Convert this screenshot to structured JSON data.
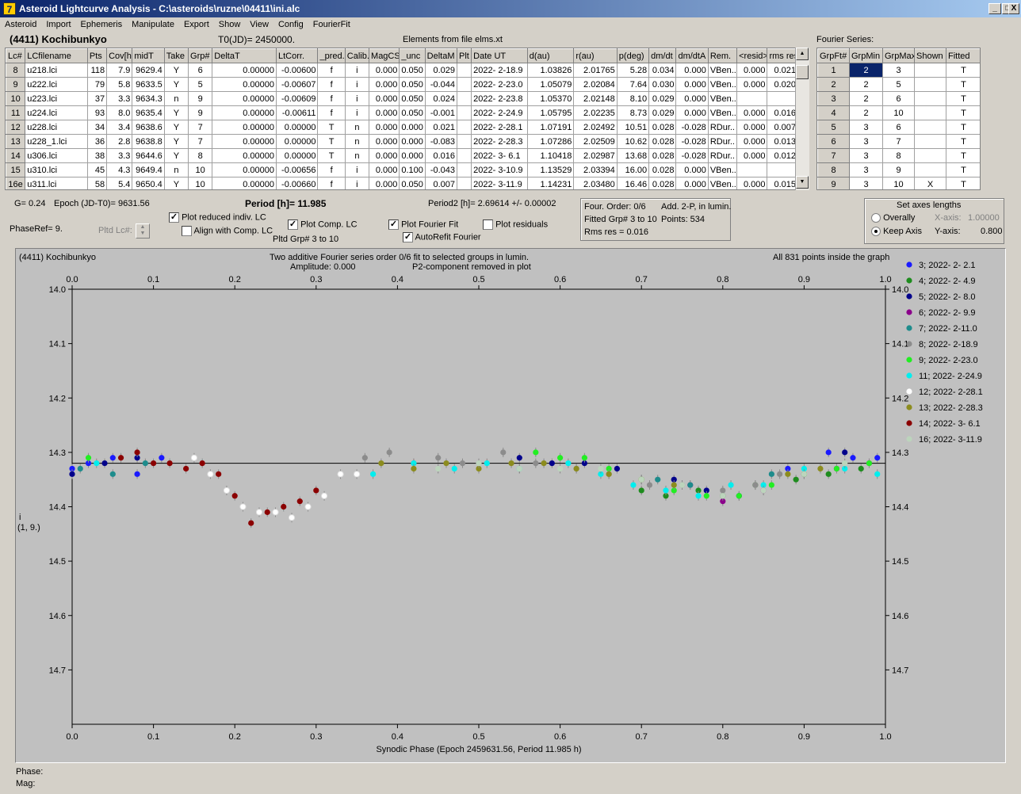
{
  "window": {
    "title": "Asteroid Lightcurve Analysis - C:\\asteroids\\ruzne\\04411\\ini.alc",
    "app_icon": "7",
    "controls": [
      "_",
      "□",
      "X"
    ]
  },
  "menu": [
    "Asteroid",
    "Import",
    "Ephemeris",
    "Manipulate",
    "Export",
    "Show",
    "View",
    "Config",
    "FourierFit"
  ],
  "header": {
    "asteroid": "(4411) Kochibunkyo",
    "t0": "T0(JD)= 2450000.",
    "elements": "Elements from file elms.xt",
    "fourier_label": "Fourier Series:"
  },
  "lc_table": {
    "columns": [
      "Lc#",
      "LCfilename",
      "Pts",
      "Cov[h]",
      "midT",
      "Take",
      "Grp#",
      "DeltaT",
      "LtCorr.",
      "_pred.",
      "Calib.",
      "MagCS",
      "_unc",
      "DeltaM",
      "Plt",
      "Date UT",
      "d(au)",
      "r(au)",
      "p(deg)",
      "dm/dt",
      "dm/dtA",
      "Rem.",
      "<resid>",
      "rms res"
    ],
    "rows": [
      [
        "8",
        "u218.lci",
        "118",
        "7.9",
        "9629.4",
        "Y",
        "6",
        "0.00000",
        "-0.00600",
        "f",
        "i",
        "0.000",
        "0.050",
        "0.029",
        "",
        "2022- 2-18.9",
        "1.03826",
        "2.01765",
        "5.28",
        "0.034",
        "0.000",
        "VBen..",
        "0.000",
        "0.021"
      ],
      [
        "9",
        "u222.lci",
        "79",
        "5.8",
        "9633.5",
        "Y",
        "5",
        "0.00000",
        "-0.00607",
        "f",
        "i",
        "0.000",
        "0.050",
        "-0.044",
        "",
        "2022- 2-23.0",
        "1.05079",
        "2.02084",
        "7.64",
        "0.030",
        "0.000",
        "VBen..",
        "0.000",
        "0.020"
      ],
      [
        "10",
        "u223.lci",
        "37",
        "3.3",
        "9634.3",
        "n",
        "9",
        "0.00000",
        "-0.00609",
        "f",
        "i",
        "0.000",
        "0.050",
        "0.024",
        "",
        "2022- 2-23.8",
        "1.05370",
        "2.02148",
        "8.10",
        "0.029",
        "0.000",
        "VBen..",
        "",
        ""
      ],
      [
        "11",
        "u224.lci",
        "93",
        "8.0",
        "9635.4",
        "Y",
        "9",
        "0.00000",
        "-0.00611",
        "f",
        "i",
        "0.000",
        "0.050",
        "-0.001",
        "",
        "2022- 2-24.9",
        "1.05795",
        "2.02235",
        "8.73",
        "0.029",
        "0.000",
        "VBen..",
        "0.000",
        "0.016"
      ],
      [
        "12",
        "u228.lci",
        "34",
        "3.4",
        "9638.6",
        "Y",
        "7",
        "0.00000",
        "0.00000",
        "T",
        "n",
        "0.000",
        "0.000",
        "0.021",
        "",
        "2022- 2-28.1",
        "1.07191",
        "2.02492",
        "10.51",
        "0.028",
        "-0.028",
        "RDur..",
        "0.000",
        "0.007"
      ],
      [
        "13",
        "u228_1.lci",
        "36",
        "2.8",
        "9638.8",
        "Y",
        "7",
        "0.00000",
        "0.00000",
        "T",
        "n",
        "0.000",
        "0.000",
        "-0.083",
        "",
        "2022- 2-28.3",
        "1.07286",
        "2.02509",
        "10.62",
        "0.028",
        "-0.028",
        "RDur..",
        "0.000",
        "0.013"
      ],
      [
        "14",
        "u306.lci",
        "38",
        "3.3",
        "9644.6",
        "Y",
        "8",
        "0.00000",
        "0.00000",
        "T",
        "n",
        "0.000",
        "0.000",
        "0.016",
        "",
        "2022- 3- 6.1",
        "1.10418",
        "2.02987",
        "13.68",
        "0.028",
        "-0.028",
        "RDur..",
        "0.000",
        "0.012"
      ],
      [
        "15",
        "u310.lci",
        "45",
        "4.3",
        "9649.4",
        "n",
        "10",
        "0.00000",
        "-0.00656",
        "f",
        "i",
        "0.000",
        "0.100",
        "-0.043",
        "",
        "2022- 3-10.9",
        "1.13529",
        "2.03394",
        "16.00",
        "0.028",
        "0.000",
        "VBen..",
        "",
        ""
      ],
      [
        "16e",
        "u311.lci",
        "58",
        "5.4",
        "9650.4",
        "Y",
        "10",
        "0.00000",
        "-0.00660",
        "f",
        "i",
        "0.000",
        "0.050",
        "0.007",
        "",
        "2022- 3-11.9",
        "1.14231",
        "2.03480",
        "16.46",
        "0.028",
        "0.000",
        "VBen..",
        "0.000",
        "0.015"
      ]
    ]
  },
  "fourier_table": {
    "columns": [
      "GrpFt#",
      "GrpMin",
      "GrpMax",
      "Shown",
      "Fitted"
    ],
    "rows": [
      [
        "1",
        "2",
        "3",
        "",
        "T"
      ],
      [
        "2",
        "2",
        "5",
        "",
        "T"
      ],
      [
        "3",
        "2",
        "6",
        "",
        "T"
      ],
      [
        "4",
        "2",
        "10",
        "",
        "T"
      ],
      [
        "5",
        "3",
        "6",
        "",
        "T"
      ],
      [
        "6",
        "3",
        "7",
        "",
        "T"
      ],
      [
        "7",
        "3",
        "8",
        "",
        "T"
      ],
      [
        "8",
        "3",
        "9",
        "",
        "T"
      ],
      [
        "9",
        "3",
        "10",
        "X",
        "T"
      ]
    ]
  },
  "controls": {
    "g": "G= 0.24",
    "epoch": "Epoch (JD-T0)= 9631.56",
    "period": "Period [h]= 11.985",
    "period2": "Period2 [h]= 2.69614 +/- 0.00002",
    "phaseref": "PhaseRef= 9.",
    "pltd_lc": "Pltd Lc#:",
    "cb_reduced": "Plot reduced indiv. LC",
    "cb_align": "Align with Comp. LC",
    "cb_comp": "Plot Comp. LC",
    "pltd_grp": "Pltd Grp#  3   to   10",
    "cb_fourier": "Plot Fourier Fit",
    "cb_autorefit": "AutoRefit Fourier",
    "cb_residuals": "Plot residuals",
    "checked": {
      "reduced": true,
      "align": false,
      "comp": true,
      "fourier": true,
      "autorefit": true,
      "residuals": false
    }
  },
  "fourier_info": {
    "order": "Four. Order:  0/6",
    "add": "Add. 2-P, in lumin.",
    "fitted": "Fitted Grp# 3 to 10",
    "points": "Points: 534",
    "rms": "Rms res     = 0.016"
  },
  "axes_box": {
    "title": "Set axes lengths",
    "overally": "Overally",
    "keepaxis": "Keep Axis",
    "xaxis_label": "X-axis:",
    "xaxis_val": "1.00000",
    "yaxis_label": "Y-axis:",
    "yaxis_val": "0.800",
    "selected": "keepaxis"
  },
  "plot_header": {
    "name": "(4411) Kochibunkyo",
    "desc1": "Two additive Fourier series order 0/6 fit to selected groups in lumin.",
    "desc2": "Amplitude: 0.000",
    "desc3": "P2-component removed in plot",
    "points": "All 831 points inside the graph",
    "ylabel1": "i",
    "ylabel2": "(1, 9.)"
  },
  "status": {
    "phase": "Phase:",
    "mag": "Mag:"
  },
  "chart_data": {
    "type": "scatter",
    "xlabel": "Synodic Phase (Epoch 2459631.56, Period 11.985 h)",
    "ylabel": "i (1, 9.)",
    "xlim": [
      0,
      1
    ],
    "ylim": [
      14.0,
      14.8
    ],
    "y_inverted": true,
    "xticks": [
      "0.0",
      "0.1",
      "0.2",
      "0.3",
      "0.4",
      "0.5",
      "0.6",
      "0.7",
      "0.8",
      "0.9",
      "1.0"
    ],
    "yticks": [
      "14.0",
      "14.1",
      "14.2",
      "14.3",
      "14.4",
      "14.5",
      "14.6",
      "14.7"
    ],
    "fit_line": 14.32,
    "legend_position": "right",
    "series": [
      {
        "name": "3; 2022- 2- 2.1",
        "color": "#1a1aff",
        "points": [
          [
            0.0,
            14.33
          ],
          [
            0.02,
            14.32
          ],
          [
            0.05,
            14.31
          ],
          [
            0.08,
            14.34
          ],
          [
            0.11,
            14.31
          ],
          [
            0.88,
            14.33
          ],
          [
            0.93,
            14.3
          ],
          [
            0.96,
            14.31
          ],
          [
            0.99,
            14.31
          ]
        ]
      },
      {
        "name": "4; 2022- 2- 4.9",
        "color": "#1e8c1e",
        "points": [
          [
            0.7,
            14.37
          ],
          [
            0.73,
            14.38
          ],
          [
            0.77,
            14.37
          ],
          [
            0.8,
            14.38
          ],
          [
            0.84,
            14.36
          ],
          [
            0.89,
            14.35
          ],
          [
            0.93,
            14.34
          ],
          [
            0.97,
            14.33
          ]
        ]
      },
      {
        "name": "5; 2022- 2- 8.0",
        "color": "#00008b",
        "points": [
          [
            0.55,
            14.31
          ],
          [
            0.59,
            14.32
          ],
          [
            0.63,
            14.32
          ],
          [
            0.67,
            14.33
          ],
          [
            0.74,
            14.35
          ],
          [
            0.78,
            14.37
          ],
          [
            0.82,
            14.38
          ],
          [
            0.95,
            14.3
          ],
          [
            0.0,
            14.34
          ],
          [
            0.04,
            14.32
          ],
          [
            0.08,
            14.31
          ]
        ]
      },
      {
        "name": "6; 2022- 2- 9.9",
        "color": "#8b008b",
        "points": [
          [
            0.76,
            14.36
          ],
          [
            0.8,
            14.39
          ],
          [
            0.85,
            14.37
          ],
          [
            0.9,
            14.34
          ],
          [
            0.94,
            14.33
          ],
          [
            0.98,
            14.32
          ]
        ]
      },
      {
        "name": "7; 2022- 2-11.0",
        "color": "#1e8c8c",
        "points": [
          [
            0.01,
            14.33
          ],
          [
            0.05,
            14.34
          ],
          [
            0.09,
            14.32
          ],
          [
            0.72,
            14.35
          ],
          [
            0.76,
            14.36
          ],
          [
            0.86,
            14.34
          ]
        ]
      },
      {
        "name": "8; 2022- 2-18.9",
        "color": "#8c8c8c",
        "points": [
          [
            0.36,
            14.31
          ],
          [
            0.39,
            14.3
          ],
          [
            0.42,
            14.32
          ],
          [
            0.45,
            14.31
          ],
          [
            0.48,
            14.32
          ],
          [
            0.53,
            14.3
          ],
          [
            0.57,
            14.32
          ],
          [
            0.62,
            14.33
          ],
          [
            0.66,
            14.34
          ],
          [
            0.71,
            14.36
          ],
          [
            0.75,
            14.36
          ],
          [
            0.8,
            14.37
          ],
          [
            0.84,
            14.36
          ],
          [
            0.87,
            14.34
          ]
        ]
      },
      {
        "name": "9; 2022- 2-23.0",
        "color": "#22ee22",
        "points": [
          [
            0.57,
            14.3
          ],
          [
            0.6,
            14.31
          ],
          [
            0.63,
            14.31
          ],
          [
            0.66,
            14.33
          ],
          [
            0.7,
            14.35
          ],
          [
            0.74,
            14.37
          ],
          [
            0.78,
            14.38
          ],
          [
            0.82,
            14.38
          ],
          [
            0.86,
            14.36
          ],
          [
            0.9,
            14.34
          ],
          [
            0.94,
            14.33
          ],
          [
            0.98,
            14.32
          ],
          [
            0.02,
            14.31
          ]
        ]
      },
      {
        "name": "11; 2022- 2-24.9",
        "color": "#00eeee",
        "points": [
          [
            0.37,
            14.34
          ],
          [
            0.42,
            14.32
          ],
          [
            0.47,
            14.33
          ],
          [
            0.51,
            14.32
          ],
          [
            0.55,
            14.33
          ],
          [
            0.61,
            14.32
          ],
          [
            0.65,
            14.34
          ],
          [
            0.69,
            14.36
          ],
          [
            0.73,
            14.37
          ],
          [
            0.77,
            14.38
          ],
          [
            0.81,
            14.36
          ],
          [
            0.85,
            14.36
          ],
          [
            0.9,
            14.33
          ],
          [
            0.95,
            14.33
          ],
          [
            0.99,
            14.34
          ],
          [
            0.03,
            14.32
          ]
        ]
      },
      {
        "name": "12; 2022- 2-28.1",
        "color": "#ffffff",
        "points": [
          [
            0.15,
            14.31
          ],
          [
            0.17,
            14.34
          ],
          [
            0.19,
            14.37
          ],
          [
            0.21,
            14.4
          ],
          [
            0.23,
            14.41
          ],
          [
            0.25,
            14.41
          ],
          [
            0.27,
            14.42
          ],
          [
            0.29,
            14.4
          ],
          [
            0.31,
            14.38
          ],
          [
            0.33,
            14.34
          ],
          [
            0.35,
            14.34
          ]
        ]
      },
      {
        "name": "13; 2022- 2-28.3",
        "color": "#8c8c1e",
        "points": [
          [
            0.38,
            14.32
          ],
          [
            0.42,
            14.33
          ],
          [
            0.46,
            14.32
          ],
          [
            0.5,
            14.33
          ],
          [
            0.54,
            14.32
          ],
          [
            0.58,
            14.32
          ],
          [
            0.62,
            14.33
          ],
          [
            0.66,
            14.34
          ],
          [
            0.7,
            14.35
          ],
          [
            0.74,
            14.36
          ],
          [
            0.88,
            14.34
          ],
          [
            0.92,
            14.33
          ]
        ]
      },
      {
        "name": "14; 2022- 3- 6.1",
        "color": "#8b0000",
        "points": [
          [
            0.06,
            14.31
          ],
          [
            0.08,
            14.3
          ],
          [
            0.1,
            14.32
          ],
          [
            0.12,
            14.32
          ],
          [
            0.14,
            14.33
          ],
          [
            0.16,
            14.32
          ],
          [
            0.18,
            14.34
          ],
          [
            0.2,
            14.38
          ],
          [
            0.22,
            14.43
          ],
          [
            0.24,
            14.41
          ],
          [
            0.26,
            14.4
          ],
          [
            0.28,
            14.39
          ],
          [
            0.3,
            14.37
          ]
        ]
      },
      {
        "name": "16; 2022- 3-11.9",
        "color": "#bcd4bc",
        "points": [
          [
            0.45,
            14.33
          ],
          [
            0.5,
            14.32
          ],
          [
            0.55,
            14.33
          ],
          [
            0.6,
            14.33
          ],
          [
            0.65,
            14.33
          ],
          [
            0.7,
            14.35
          ],
          [
            0.75,
            14.36
          ],
          [
            0.8,
            14.38
          ],
          [
            0.85,
            14.37
          ],
          [
            0.9,
            14.34
          ],
          [
            0.95,
            14.32
          ]
        ]
      }
    ]
  }
}
